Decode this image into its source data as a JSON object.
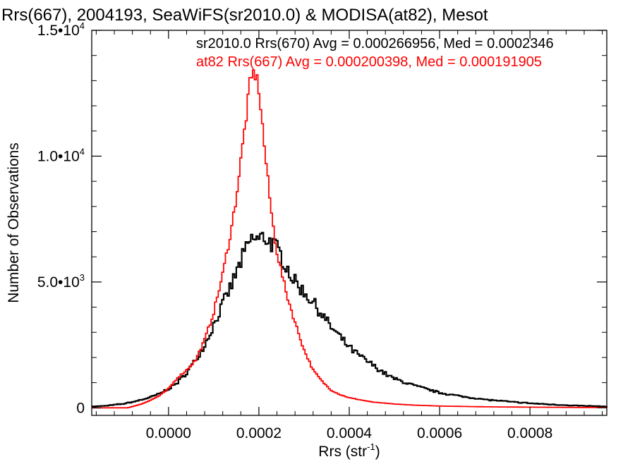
{
  "chart_data": {
    "type": "line",
    "title": "Rrs(667), 2004193, SeaWiFS(sr2010.0) & MODISA(at82), Mesot",
    "xlabel": "Rrs (str",
    "xlabel_sup": "-1",
    "xlabel_close": ")",
    "ylabel": "Number of Observations",
    "xlim": [
      -0.00017,
      0.00097
    ],
    "ylim": [
      -300,
      15000
    ],
    "x_ticks": [
      0.0,
      0.0002,
      0.0004,
      0.0006,
      0.0008
    ],
    "x_tick_labels": [
      "0.0000",
      "0.0002",
      "0.0004",
      "0.0006",
      "0.0008"
    ],
    "y_ticks": [
      0,
      5000,
      10000,
      15000
    ],
    "y_tick_labels": [
      {
        "mant": "0",
        "exp": ""
      },
      {
        "mant": "5.0•10",
        "exp": "3"
      },
      {
        "mant": "1.0•10",
        "exp": "4"
      },
      {
        "mant": "1.5•10",
        "exp": "4"
      }
    ],
    "legend_placement": "top-right",
    "series": [
      {
        "name": "sr2010.0 Rrs(670) Avg = 0.000266956, Med = 0.0002346",
        "color": "#000000",
        "points": [
          [
            -0.00017,
            50
          ],
          [
            -0.00014,
            80
          ],
          [
            -0.00012,
            120
          ],
          [
            -0.0001,
            160
          ],
          [
            -8e-05,
            230
          ],
          [
            -6e-05,
            320
          ],
          [
            -4e-05,
            420
          ],
          [
            -2e-05,
            560
          ],
          [
            0.0,
            760
          ],
          [
            2e-05,
            1000
          ],
          [
            4e-05,
            1400
          ],
          [
            6e-05,
            1900
          ],
          [
            8e-05,
            2500
          ],
          [
            0.0001,
            3300
          ],
          [
            0.00012,
            4100
          ],
          [
            0.00014,
            4900
          ],
          [
            0.00016,
            5800
          ],
          [
            0.00017,
            6200
          ],
          [
            0.00018,
            6600
          ],
          [
            0.00019,
            6750
          ],
          [
            0.0002,
            6650
          ],
          [
            0.00021,
            6800
          ],
          [
            0.00022,
            6700
          ],
          [
            0.00023,
            6500
          ],
          [
            0.00024,
            6300
          ],
          [
            0.00025,
            6000
          ],
          [
            0.00026,
            5700
          ],
          [
            0.00027,
            5300
          ],
          [
            0.00028,
            5000
          ],
          [
            0.0003,
            4600
          ],
          [
            0.00032,
            4200
          ],
          [
            0.00034,
            3700
          ],
          [
            0.00036,
            3200
          ],
          [
            0.00038,
            2800
          ],
          [
            0.0004,
            2400
          ],
          [
            0.00042,
            2100
          ],
          [
            0.00044,
            1850
          ],
          [
            0.00046,
            1600
          ],
          [
            0.00048,
            1350
          ],
          [
            0.0005,
            1150
          ],
          [
            0.00055,
            850
          ],
          [
            0.0006,
            600
          ],
          [
            0.00065,
            450
          ],
          [
            0.0007,
            330
          ],
          [
            0.00075,
            250
          ],
          [
            0.0008,
            180
          ],
          [
            0.00085,
            130
          ],
          [
            0.0009,
            90
          ],
          [
            0.00097,
            50
          ]
        ]
      },
      {
        "name": "at82 Rrs(667) Avg = 0.000200398, Med = 0.000191905",
        "color": "#ff0000",
        "points": [
          [
            -0.00017,
            0
          ],
          [
            -9e-05,
            0
          ],
          [
            -8e-05,
            50
          ],
          [
            -6e-05,
            150
          ],
          [
            -4e-05,
            300
          ],
          [
            -2e-05,
            480
          ],
          [
            0.0,
            760
          ],
          [
            2e-05,
            1200
          ],
          [
            4e-05,
            1500
          ],
          [
            6e-05,
            1900
          ],
          [
            8e-05,
            2700
          ],
          [
            0.0001,
            3800
          ],
          [
            0.00012,
            5300
          ],
          [
            0.00014,
            7200
          ],
          [
            0.00015,
            8400
          ],
          [
            0.00016,
            9800
          ],
          [
            0.00017,
            11300
          ],
          [
            0.00018,
            12800
          ],
          [
            0.00019,
            13400
          ],
          [
            0.0002,
            12700
          ],
          [
            0.00021,
            10800
          ],
          [
            0.00022,
            9000
          ],
          [
            0.00023,
            7400
          ],
          [
            0.00024,
            6200
          ],
          [
            0.00025,
            5400
          ],
          [
            0.00026,
            4600
          ],
          [
            0.00027,
            4000
          ],
          [
            0.00028,
            3400
          ],
          [
            0.0003,
            2300
          ],
          [
            0.00032,
            1500
          ],
          [
            0.00034,
            1050
          ],
          [
            0.00036,
            700
          ],
          [
            0.00038,
            520
          ],
          [
            0.0004,
            400
          ],
          [
            0.00045,
            230
          ],
          [
            0.0005,
            150
          ],
          [
            0.00055,
            100
          ],
          [
            0.0006,
            70
          ],
          [
            0.0007,
            40
          ],
          [
            0.0008,
            25
          ],
          [
            0.0009,
            15
          ],
          [
            0.00097,
            10
          ]
        ]
      }
    ]
  }
}
